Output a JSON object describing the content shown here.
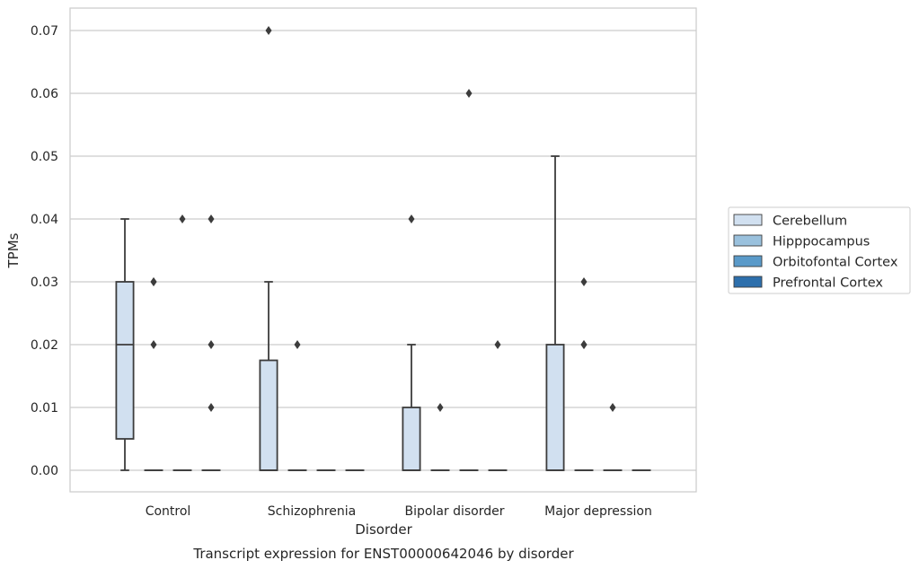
{
  "chart_data": {
    "type": "box",
    "title": "Transcript expression for ENST00000642046 by disorder",
    "xlabel": "Disorder",
    "ylabel": "TPMs",
    "ylim": [
      -0.0035,
      0.0735
    ],
    "yticks": [
      "0.00",
      "0.01",
      "0.02",
      "0.03",
      "0.04",
      "0.05",
      "0.06",
      "0.07"
    ],
    "ytick_values": [
      0,
      0.01,
      0.02,
      0.03,
      0.04,
      0.05,
      0.06,
      0.07
    ],
    "grid": "horizontal",
    "legend_position": "outside-right",
    "categories": [
      "Control",
      "Schizophrenia",
      "Bipolar disorder",
      "Major depression"
    ],
    "series": [
      {
        "name": "Cerebellum",
        "color": "#d1e0f0",
        "boxes": [
          {
            "q1": 0.005,
            "median": 0.02,
            "q3": 0.03,
            "whislo": 0.0,
            "whishi": 0.04,
            "fliers": []
          },
          {
            "q1": 0.0,
            "median": 0.0,
            "q3": 0.0175,
            "whislo": 0.0,
            "whishi": 0.03,
            "fliers": [
              0.07
            ]
          },
          {
            "q1": 0.0,
            "median": 0.0,
            "q3": 0.01,
            "whislo": 0.0,
            "whishi": 0.02,
            "fliers": [
              0.04
            ]
          },
          {
            "q1": 0.0,
            "median": 0.0,
            "q3": 0.02,
            "whislo": 0.0,
            "whishi": 0.05,
            "fliers": []
          }
        ]
      },
      {
        "name": "Hipppocampus",
        "color": "#9ac1dd",
        "boxes": [
          {
            "q1": 0,
            "median": 0,
            "q3": 0,
            "whislo": 0,
            "whishi": 0,
            "fliers": [
              0.02,
              0.03,
              0.03
            ]
          },
          {
            "q1": 0,
            "median": 0,
            "q3": 0,
            "whislo": 0,
            "whishi": 0,
            "fliers": [
              0.02
            ]
          },
          {
            "q1": 0,
            "median": 0,
            "q3": 0,
            "whislo": 0,
            "whishi": 0,
            "fliers": [
              0.01
            ]
          },
          {
            "q1": 0,
            "median": 0,
            "q3": 0,
            "whislo": 0,
            "whishi": 0,
            "fliers": [
              0.02,
              0.02,
              0.03
            ]
          }
        ]
      },
      {
        "name": "Orbitofontal Cortex",
        "color": "#5a9ac9",
        "boxes": [
          {
            "q1": 0,
            "median": 0,
            "q3": 0,
            "whislo": 0,
            "whishi": 0,
            "fliers": [
              0.04
            ]
          },
          {
            "q1": 0,
            "median": 0,
            "q3": 0,
            "whislo": 0,
            "whishi": 0,
            "fliers": []
          },
          {
            "q1": 0,
            "median": 0,
            "q3": 0,
            "whislo": 0,
            "whishi": 0,
            "fliers": [
              0.06
            ]
          },
          {
            "q1": 0,
            "median": 0,
            "q3": 0,
            "whislo": 0,
            "whishi": 0,
            "fliers": [
              0.01
            ]
          }
        ]
      },
      {
        "name": "Prefrontal Cortex",
        "color": "#2d6fac",
        "boxes": [
          {
            "q1": 0,
            "median": 0,
            "q3": 0,
            "whislo": 0,
            "whishi": 0,
            "fliers": [
              0.01,
              0.02,
              0.04
            ]
          },
          {
            "q1": 0,
            "median": 0,
            "q3": 0,
            "whislo": 0,
            "whishi": 0,
            "fliers": []
          },
          {
            "q1": 0,
            "median": 0,
            "q3": 0,
            "whislo": 0,
            "whishi": 0,
            "fliers": [
              0.02
            ]
          },
          {
            "q1": 0,
            "median": 0,
            "q3": 0,
            "whislo": 0,
            "whishi": 0,
            "fliers": []
          }
        ]
      }
    ]
  }
}
